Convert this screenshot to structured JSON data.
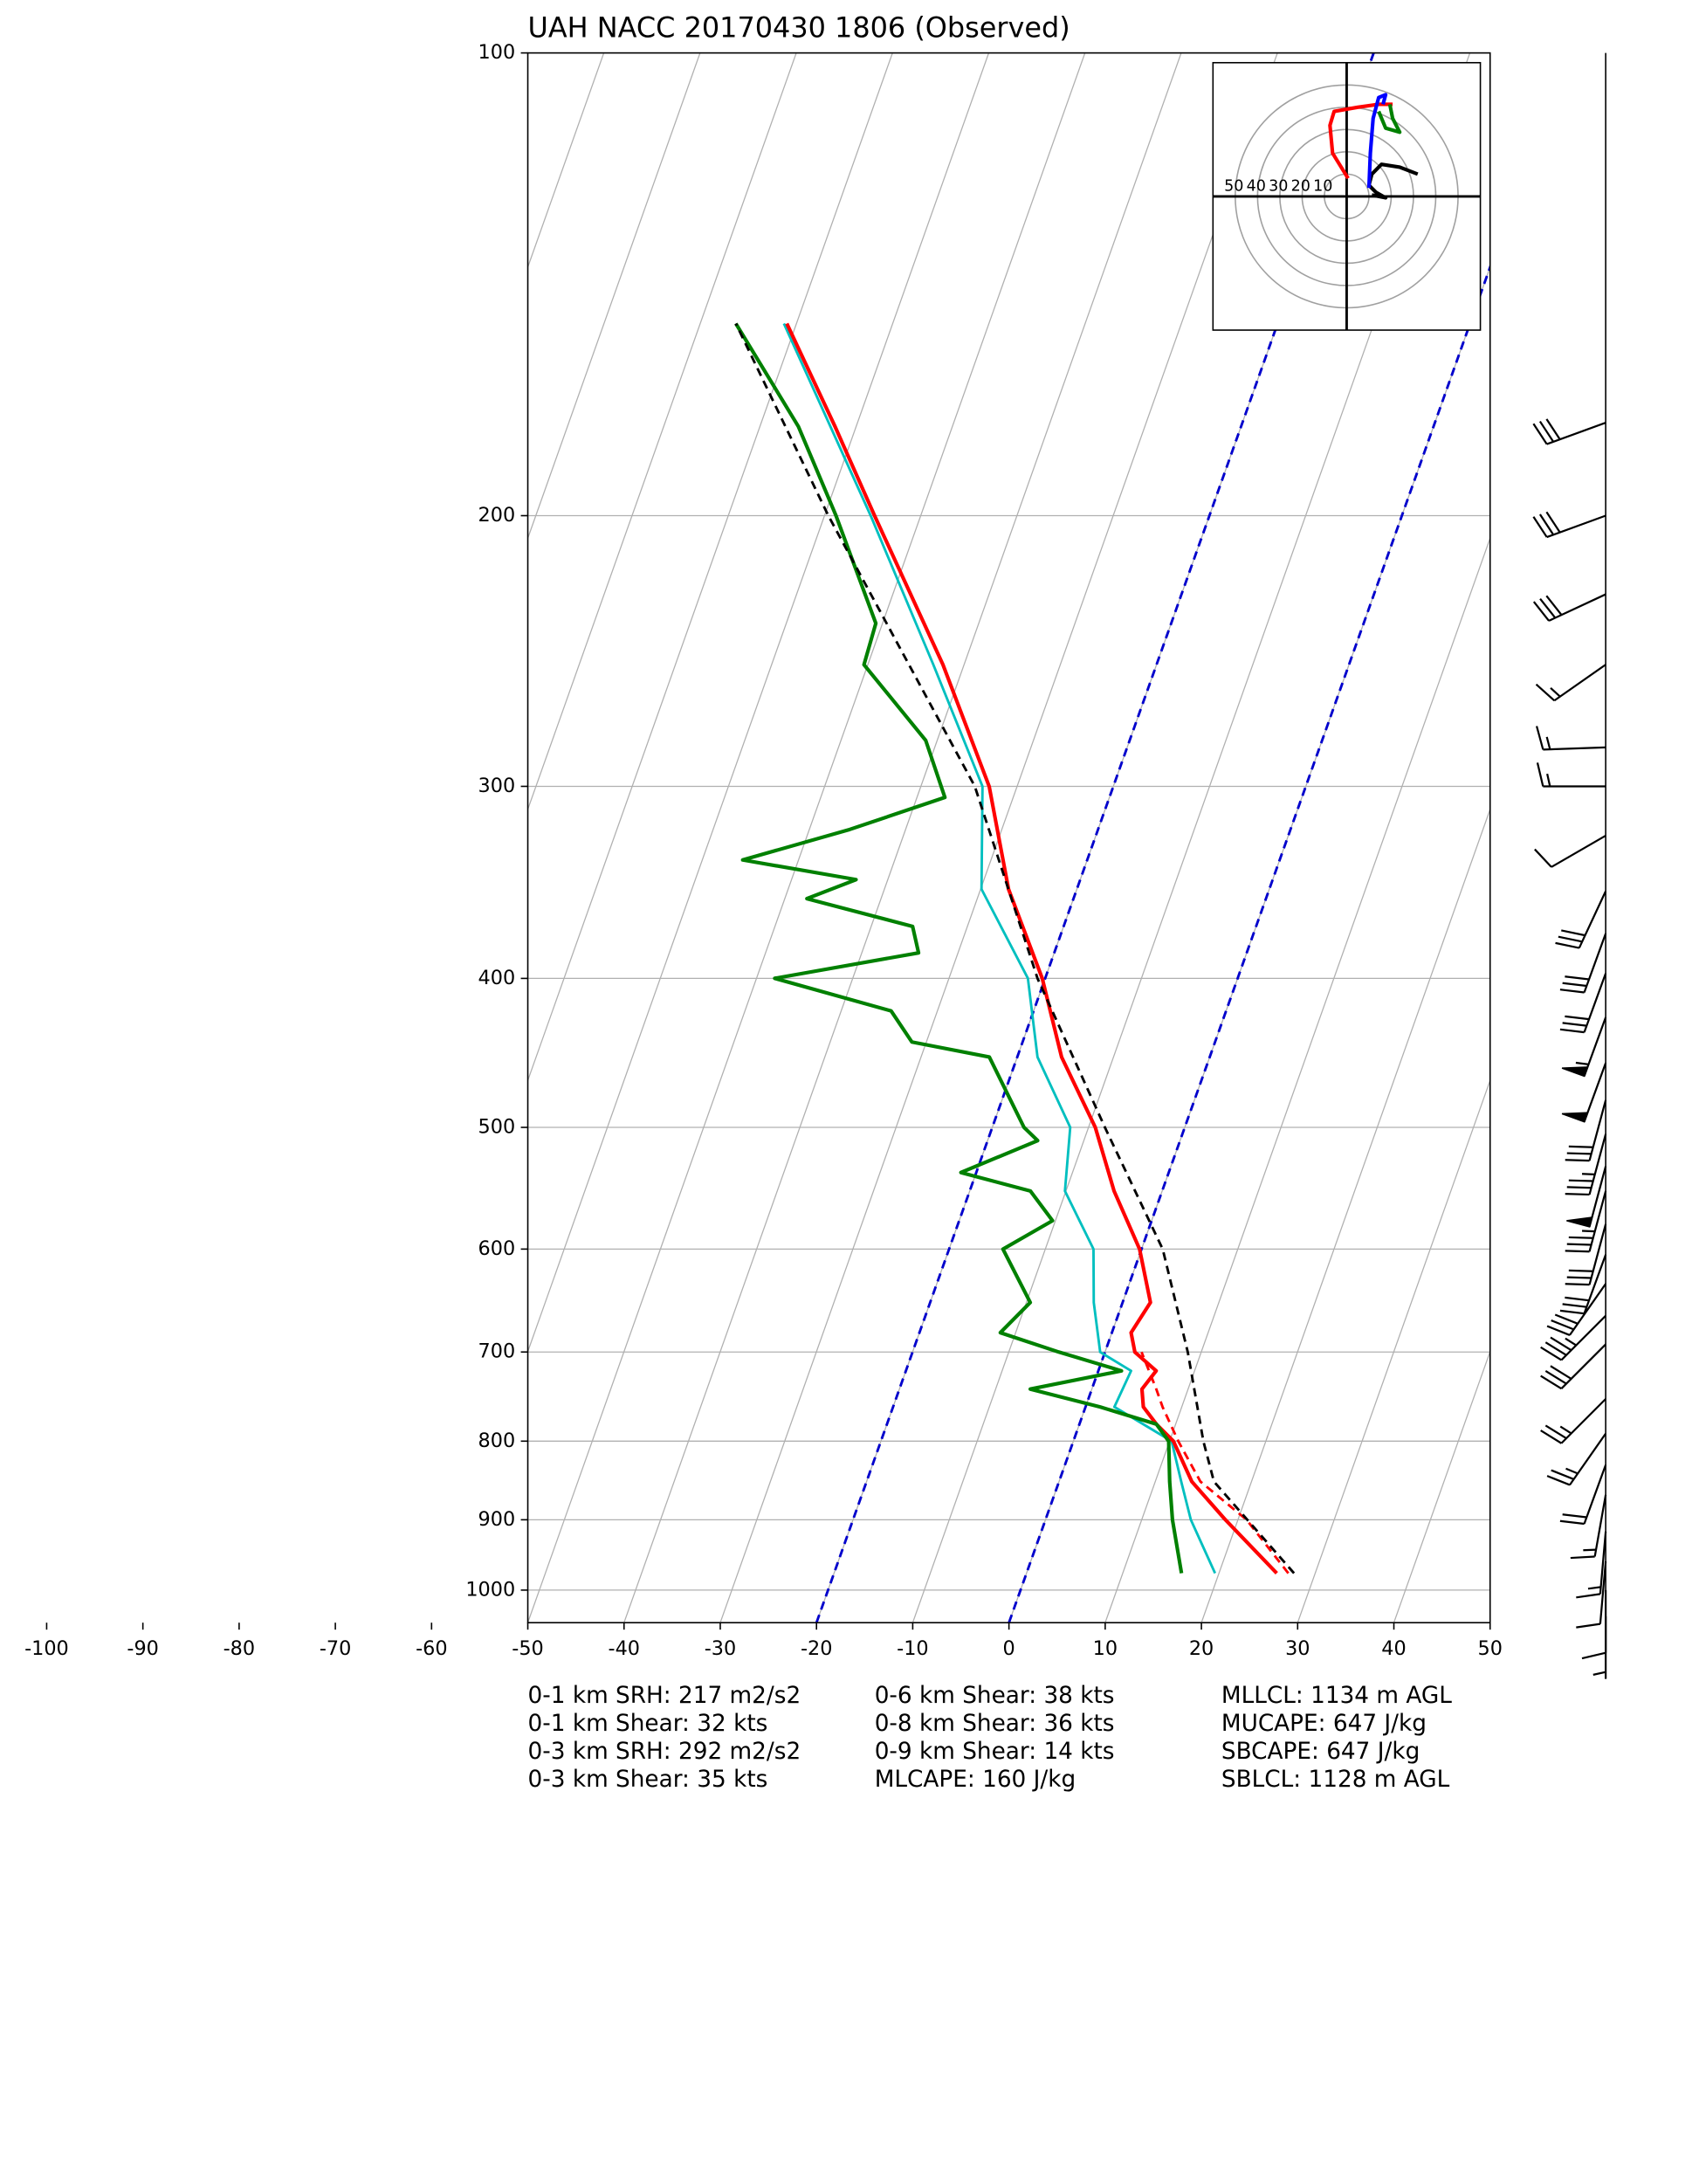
{
  "chart_data": {
    "type": "skewt",
    "title": "UAH NACC 20170430 1806   (Observed)",
    "xlim": [
      -50,
      50
    ],
    "xticks": [
      -100,
      -90,
      -80,
      -70,
      -60,
      -50,
      -40,
      -30,
      -20,
      -10,
      0,
      10,
      20,
      30,
      40,
      50
    ],
    "ylim": [
      1050,
      100
    ],
    "yticks": [
      100,
      200,
      300,
      400,
      500,
      600,
      700,
      800,
      900,
      1000
    ],
    "log_y": true,
    "grid": true,
    "isotherm_lines": {
      "values": [
        -20,
        0
      ],
      "color": "#0000cc"
    },
    "series": [
      {
        "color": "#ff0000",
        "dashed": true,
        "linewidth": 1.8,
        "pressure": [
          975,
          900,
          850,
          800,
          760,
          740,
          700
        ],
        "values": [
          27.2,
          20.9,
          14.7,
          10.9,
          8,
          6.7,
          3.8
        ]
      },
      {
        "color": "#00bfbf",
        "dashed": false,
        "linewidth": 1.8,
        "pressure": [
          975,
          900,
          850,
          800,
          760,
          720,
          700,
          650,
          600,
          550,
          500,
          450,
          400,
          350,
          300,
          250,
          200,
          150
        ],
        "values": [
          19.6,
          15.1,
          12.7,
          10.2,
          3,
          3.4,
          -0.5,
          -3,
          -5,
          -10.1,
          -11.9,
          -17.9,
          -21.8,
          -29.9,
          -33.6,
          -43.2,
          -55.2,
          -71.3
        ]
      },
      {
        "color": "#ff0000",
        "dashed": false,
        "linewidth": 2.6,
        "pressure": [
          975,
          900,
          850,
          800,
          780,
          760,
          740,
          720,
          700,
          680,
          650,
          600,
          550,
          500,
          450,
          400,
          350,
          300,
          250,
          200,
          175,
          150
        ],
        "values": [
          26,
          18.7,
          13.8,
          10.4,
          8,
          6,
          5.2,
          6,
          3.1,
          2,
          2.9,
          -0.2,
          -5,
          -9.3,
          -15.4,
          -20.3,
          -27.1,
          -32.9,
          -42.2,
          -54.8,
          -62.2,
          -71
        ]
      },
      {
        "color": "#008000",
        "dashed": false,
        "linewidth": 2.6,
        "pressure": [
          975,
          900,
          850,
          800,
          780,
          760,
          740,
          720,
          700,
          680,
          650,
          600,
          575,
          550,
          535,
          510,
          500,
          450,
          440,
          420,
          400,
          385,
          370,
          355,
          345,
          335,
          320,
          305,
          280,
          250,
          235,
          200,
          175,
          150
        ],
        "values": [
          16.1,
          13.2,
          11.5,
          9.9,
          8,
          1.5,
          -6.4,
          2.4,
          -4.8,
          -11.6,
          -9.6,
          -14.4,
          -10.3,
          -13.7,
          -21.6,
          -14.8,
          -16.7,
          -22.9,
          -31.5,
          -34.8,
          -48.1,
          -34.1,
          -35.7,
          -47.7,
          -43.3,
          -55.8,
          -45.8,
          -37.1,
          -41.2,
          -50.4,
          -50.7,
          -58.8,
          -66,
          -76.3
        ]
      },
      {
        "color": "#000000",
        "dashed": true,
        "linewidth": 1.8,
        "pressure": [
          975,
          850,
          800,
          700,
          600,
          500,
          400,
          300,
          200,
          150
        ],
        "values": [
          27.8,
          16.1,
          13.5,
          8.6,
          2.2,
          -8.3,
          -20.8,
          -34.4,
          -59.6,
          -76.3
        ]
      }
    ],
    "wind": {
      "color": "#000000",
      "pressure": [
        174,
        200,
        225,
        250,
        283,
        300,
        323,
        351,
        374,
        397,
        424,
        454,
        480,
        505,
        530,
        550,
        578,
        605,
        632,
        663,
        692,
        751,
        791,
        829,
        867,
        916,
        958,
        1000,
        1040
      ],
      "speed": [
        30,
        30,
        30,
        15,
        15,
        15,
        10,
        30,
        30,
        30,
        55,
        50,
        30,
        35,
        50,
        35,
        30,
        30,
        30,
        35,
        30,
        25,
        25,
        20,
        15,
        15,
        10,
        10,
        5
      ],
      "direction": [
        250,
        250,
        245,
        235,
        268,
        270,
        240,
        205,
        200,
        200,
        200,
        200,
        195,
        195,
        195,
        195,
        195,
        200,
        215,
        225,
        225,
        225,
        215,
        200,
        190,
        185,
        185,
        180,
        180
      ]
    },
    "hodograph": {
      "xlim": [
        -60,
        60
      ],
      "ylim": [
        -60,
        60
      ],
      "rings": [
        50,
        40,
        30,
        20,
        10
      ],
      "segments": [
        {
          "color": "#000000",
          "u": [
            11.3,
            17.5,
            13.1,
            10,
            11.3,
            15.6,
            23.8,
            31.9
          ],
          "v": [
            0.6,
            -0.6,
            1.9,
            5,
            10,
            14.4,
            13.1,
            10
          ]
        },
        {
          "color": "#ff0000",
          "u": [
            0.6,
            -6.3,
            -7.5,
            -5.6,
            5,
            14.4,
            20.6
          ],
          "v": [
            8.1,
            19.4,
            31.9,
            38.1,
            40,
            41.3,
            41.3
          ]
        },
        {
          "color": "#008000",
          "u": [
            19.4,
            20.6,
            23.8,
            17.5,
            14.4
          ],
          "v": [
            41.3,
            35,
            28.8,
            30.6,
            38.1
          ]
        },
        {
          "color": "#0000ff",
          "u": [
            10,
            10.6,
            11.9,
            14.4,
            17.5,
            16.3
          ],
          "v": [
            3.8,
            19.4,
            35,
            44.4,
            45.6,
            41.3
          ]
        }
      ]
    },
    "annotations": [
      [
        "0-1 km SRH: 217 m2/s2",
        "0-1 km Shear: 32 kts",
        "0-3 km SRH: 292 m2/s2",
        "0-3 km Shear: 35 kts"
      ],
      [
        "0-6 km Shear: 38 kts",
        "0-8 km Shear: 36 kts",
        "0-9 km Shear: 14 kts",
        "MLCAPE: 160 J/kg"
      ],
      [
        "MLLCL: 1134 m AGL",
        "MUCAPE: 647 J/kg",
        "SBCAPE: 647 J/kg",
        "SBLCL: 1128 m AGL"
      ]
    ]
  }
}
